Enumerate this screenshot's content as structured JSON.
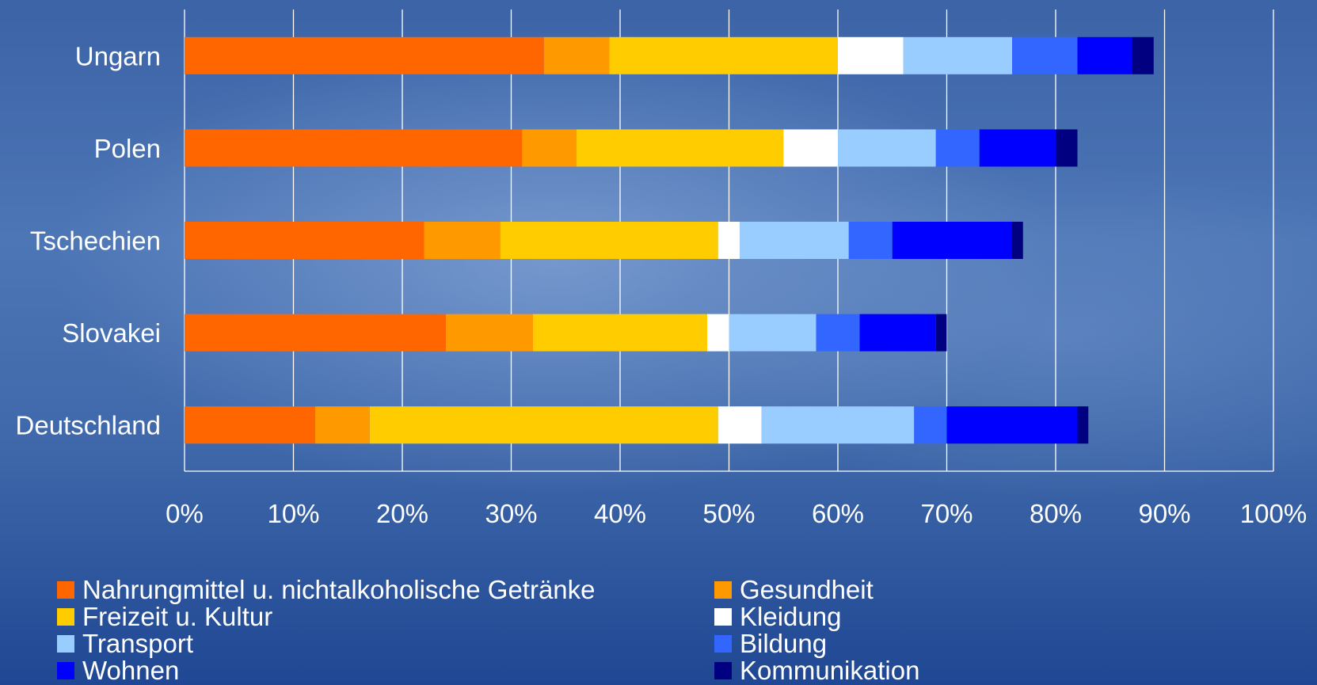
{
  "chart_data": {
    "type": "bar",
    "orientation": "horizontal",
    "stacked": true,
    "categories": [
      "Ungarn",
      "Polen",
      "Tschechien",
      "Slovakei",
      "Deutschland"
    ],
    "xlim": [
      0,
      100
    ],
    "xticks": [
      0,
      10,
      20,
      30,
      40,
      50,
      60,
      70,
      80,
      90,
      100
    ],
    "xtick_labels": [
      "0%",
      "10%",
      "20%",
      "30%",
      "40%",
      "50%",
      "60%",
      "70%",
      "80%",
      "90%",
      "100%"
    ],
    "grid": true,
    "legend_position": "bottom",
    "series": [
      {
        "name": "Nahrungmittel u. nichtalkoholische Getränke",
        "color": "#FF6600",
        "values": [
          33,
          31,
          22,
          24,
          12
        ]
      },
      {
        "name": "Gesundheit",
        "color": "#FF9900",
        "values": [
          6,
          5,
          7,
          8,
          5
        ]
      },
      {
        "name": "Freizeit u. Kultur",
        "color": "#FFCC00",
        "values": [
          21,
          19,
          20,
          16,
          32
        ]
      },
      {
        "name": "Kleidung",
        "color": "#FFFFFF",
        "values": [
          6,
          5,
          2,
          2,
          4
        ]
      },
      {
        "name": "Transport",
        "color": "#99CCFF",
        "values": [
          10,
          9,
          10,
          8,
          14
        ]
      },
      {
        "name": "Bildung",
        "color": "#3366FF",
        "values": [
          6,
          4,
          4,
          4,
          3
        ]
      },
      {
        "name": "Wohnen",
        "color": "#0000FF",
        "values": [
          5,
          7,
          11,
          7,
          12
        ]
      },
      {
        "name": "Kommunikation",
        "color": "#000080",
        "values": [
          2,
          2,
          1,
          1,
          1
        ]
      }
    ]
  },
  "legend": {
    "items": [
      {
        "label": "Nahrungmittel u. nichtalkoholische Getränke",
        "color": "#FF6600"
      },
      {
        "label": "Gesundheit",
        "color": "#FF9900"
      },
      {
        "label": "Freizeit u. Kultur",
        "color": "#FFCC00"
      },
      {
        "label": "Kleidung",
        "color": "#FFFFFF"
      },
      {
        "label": "Transport",
        "color": "#99CCFF"
      },
      {
        "label": "Bildung",
        "color": "#3366FF"
      },
      {
        "label": "Wohnen",
        "color": "#0000FF"
      },
      {
        "label": "Kommunikation",
        "color": "#000080"
      }
    ]
  }
}
